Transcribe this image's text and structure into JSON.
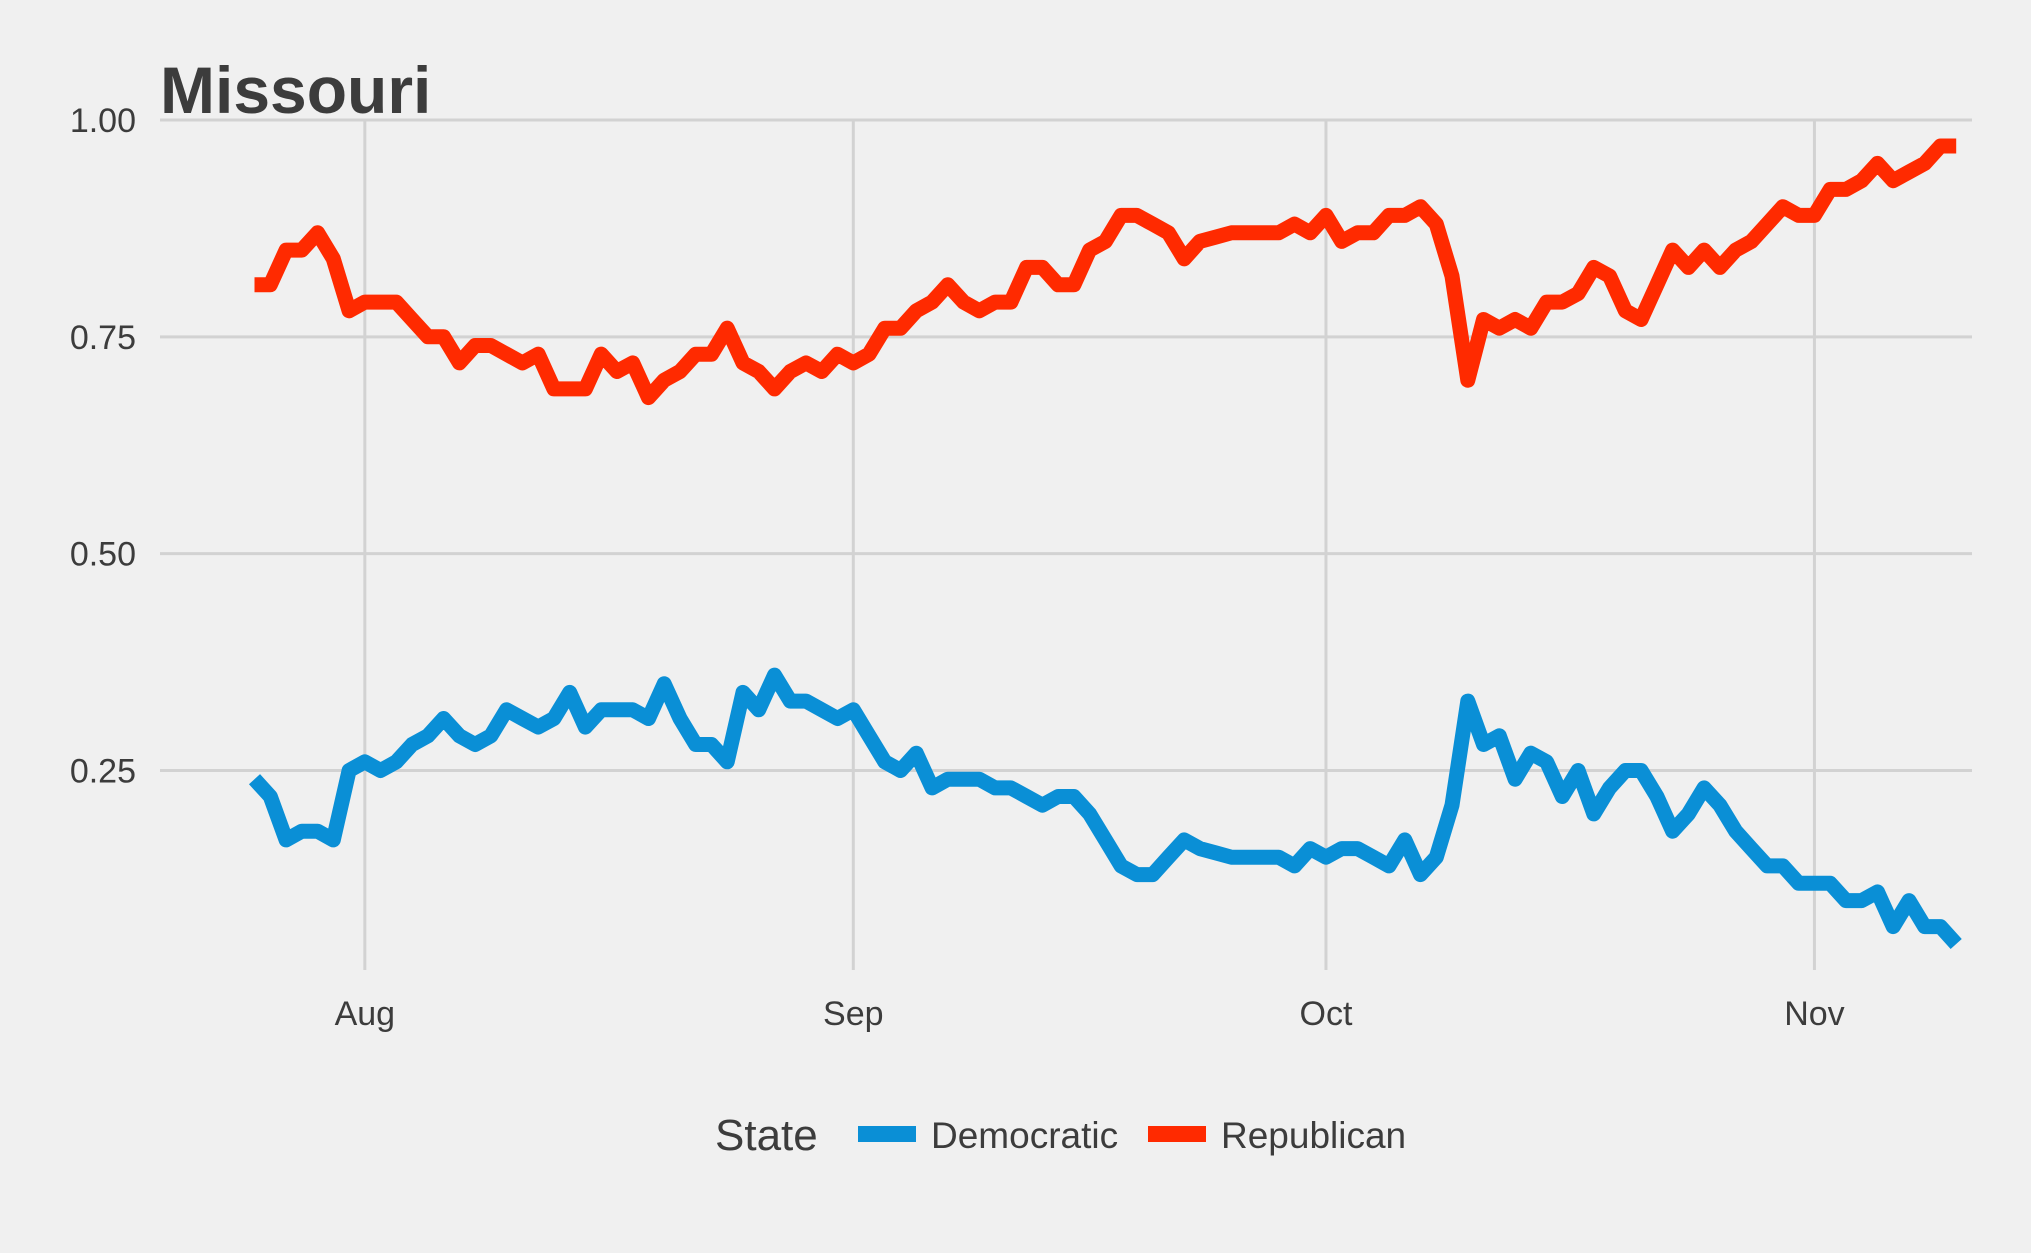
{
  "chart_data": {
    "type": "line",
    "title": "Missouri",
    "xlabel": "",
    "ylabel": "",
    "x_axis": {
      "type": "date",
      "range": [
        "07-19",
        "11-11"
      ],
      "ticks": [
        {
          "date": "08-01",
          "label": "Aug"
        },
        {
          "date": "09-01",
          "label": "Sep"
        },
        {
          "date": "10-01",
          "label": "Oct"
        },
        {
          "date": "11-01",
          "label": "Nov"
        }
      ]
    },
    "y_axis": {
      "range": [
        0.02,
        1.0
      ],
      "ticks": [
        0.25,
        0.5,
        0.75,
        1.0
      ],
      "tick_labels": [
        "0.25",
        "0.50",
        "0.75",
        "1.00"
      ]
    },
    "grid": true,
    "legend": {
      "title": "State",
      "position": "bottom"
    },
    "series": [
      {
        "name": "Democratic",
        "color": "#0a8fd6",
        "points": [
          [
            "07-25",
            0.24
          ],
          [
            "07-26",
            0.22
          ],
          [
            "07-27",
            0.17
          ],
          [
            "07-28",
            0.18
          ],
          [
            "07-29",
            0.18
          ],
          [
            "07-30",
            0.17
          ],
          [
            "07-31",
            0.25
          ],
          [
            "08-01",
            0.26
          ],
          [
            "08-02",
            0.25
          ],
          [
            "08-03",
            0.26
          ],
          [
            "08-04",
            0.28
          ],
          [
            "08-05",
            0.29
          ],
          [
            "08-06",
            0.31
          ],
          [
            "08-07",
            0.29
          ],
          [
            "08-08",
            0.28
          ],
          [
            "08-09",
            0.29
          ],
          [
            "08-10",
            0.32
          ],
          [
            "08-11",
            0.31
          ],
          [
            "08-12",
            0.3
          ],
          [
            "08-13",
            0.31
          ],
          [
            "08-14",
            0.34
          ],
          [
            "08-15",
            0.3
          ],
          [
            "08-16",
            0.32
          ],
          [
            "08-17",
            0.32
          ],
          [
            "08-18",
            0.32
          ],
          [
            "08-19",
            0.31
          ],
          [
            "08-20",
            0.35
          ],
          [
            "08-21",
            0.31
          ],
          [
            "08-22",
            0.28
          ],
          [
            "08-23",
            0.28
          ],
          [
            "08-24",
            0.26
          ],
          [
            "08-25",
            0.34
          ],
          [
            "08-26",
            0.32
          ],
          [
            "08-27",
            0.36
          ],
          [
            "08-28",
            0.33
          ],
          [
            "08-29",
            0.33
          ],
          [
            "08-30",
            0.32
          ],
          [
            "08-31",
            0.31
          ],
          [
            "09-01",
            0.32
          ],
          [
            "09-02",
            0.29
          ],
          [
            "09-03",
            0.26
          ],
          [
            "09-04",
            0.25
          ],
          [
            "09-05",
            0.27
          ],
          [
            "09-06",
            0.23
          ],
          [
            "09-07",
            0.24
          ],
          [
            "09-08",
            0.24
          ],
          [
            "09-09",
            0.24
          ],
          [
            "09-10",
            0.23
          ],
          [
            "09-11",
            0.23
          ],
          [
            "09-12",
            0.22
          ],
          [
            "09-13",
            0.21
          ],
          [
            "09-14",
            0.22
          ],
          [
            "09-15",
            0.22
          ],
          [
            "09-16",
            0.2
          ],
          [
            "09-17",
            0.17
          ],
          [
            "09-18",
            0.14
          ],
          [
            "09-19",
            0.13
          ],
          [
            "09-20",
            0.13
          ],
          [
            "09-21",
            0.15
          ],
          [
            "09-22",
            0.17
          ],
          [
            "09-23",
            0.16
          ],
          [
            "09-24",
            0.155
          ],
          [
            "09-25",
            0.15
          ],
          [
            "09-26",
            0.15
          ],
          [
            "09-27",
            0.15
          ],
          [
            "09-28",
            0.15
          ],
          [
            "09-29",
            0.14
          ],
          [
            "09-30",
            0.16
          ],
          [
            "10-01",
            0.15
          ],
          [
            "10-02",
            0.16
          ],
          [
            "10-03",
            0.16
          ],
          [
            "10-04",
            0.15
          ],
          [
            "10-05",
            0.14
          ],
          [
            "10-06",
            0.17
          ],
          [
            "10-07",
            0.13
          ],
          [
            "10-08",
            0.15
          ],
          [
            "10-09",
            0.21
          ],
          [
            "10-10",
            0.33
          ],
          [
            "10-11",
            0.28
          ],
          [
            "10-12",
            0.29
          ],
          [
            "10-13",
            0.24
          ],
          [
            "10-14",
            0.27
          ],
          [
            "10-15",
            0.26
          ],
          [
            "10-16",
            0.22
          ],
          [
            "10-17",
            0.25
          ],
          [
            "10-18",
            0.2
          ],
          [
            "10-19",
            0.23
          ],
          [
            "10-20",
            0.25
          ],
          [
            "10-21",
            0.25
          ],
          [
            "10-22",
            0.22
          ],
          [
            "10-23",
            0.18
          ],
          [
            "10-24",
            0.2
          ],
          [
            "10-25",
            0.23
          ],
          [
            "10-26",
            0.21
          ],
          [
            "10-27",
            0.18
          ],
          [
            "10-28",
            0.16
          ],
          [
            "10-29",
            0.14
          ],
          [
            "10-30",
            0.14
          ],
          [
            "10-31",
            0.12
          ],
          [
            "11-01",
            0.12
          ],
          [
            "11-02",
            0.12
          ],
          [
            "11-03",
            0.1
          ],
          [
            "11-04",
            0.1
          ],
          [
            "11-05",
            0.11
          ],
          [
            "11-06",
            0.07
          ],
          [
            "11-07",
            0.1
          ],
          [
            "11-08",
            0.07
          ],
          [
            "11-09",
            0.07
          ],
          [
            "11-10",
            0.05
          ]
        ]
      },
      {
        "name": "Republican",
        "color": "#ff2a00",
        "points": [
          [
            "07-25",
            0.81
          ],
          [
            "07-26",
            0.81
          ],
          [
            "07-27",
            0.85
          ],
          [
            "07-28",
            0.85
          ],
          [
            "07-29",
            0.87
          ],
          [
            "07-30",
            0.84
          ],
          [
            "07-31",
            0.78
          ],
          [
            "08-01",
            0.79
          ],
          [
            "08-02",
            0.79
          ],
          [
            "08-03",
            0.79
          ],
          [
            "08-04",
            0.77
          ],
          [
            "08-05",
            0.75
          ],
          [
            "08-06",
            0.75
          ],
          [
            "08-07",
            0.72
          ],
          [
            "08-08",
            0.74
          ],
          [
            "08-09",
            0.74
          ],
          [
            "08-10",
            0.73
          ],
          [
            "08-11",
            0.72
          ],
          [
            "08-12",
            0.73
          ],
          [
            "08-13",
            0.69
          ],
          [
            "08-14",
            0.69
          ],
          [
            "08-15",
            0.69
          ],
          [
            "08-16",
            0.73
          ],
          [
            "08-17",
            0.71
          ],
          [
            "08-18",
            0.72
          ],
          [
            "08-19",
            0.68
          ],
          [
            "08-20",
            0.7
          ],
          [
            "08-21",
            0.71
          ],
          [
            "08-22",
            0.73
          ],
          [
            "08-23",
            0.73
          ],
          [
            "08-24",
            0.76
          ],
          [
            "08-25",
            0.72
          ],
          [
            "08-26",
            0.71
          ],
          [
            "08-27",
            0.69
          ],
          [
            "08-28",
            0.71
          ],
          [
            "08-29",
            0.72
          ],
          [
            "08-30",
            0.71
          ],
          [
            "08-31",
            0.73
          ],
          [
            "09-01",
            0.72
          ],
          [
            "09-02",
            0.73
          ],
          [
            "09-03",
            0.76
          ],
          [
            "09-04",
            0.76
          ],
          [
            "09-05",
            0.78
          ],
          [
            "09-06",
            0.79
          ],
          [
            "09-07",
            0.81
          ],
          [
            "09-08",
            0.79
          ],
          [
            "09-09",
            0.78
          ],
          [
            "09-10",
            0.79
          ],
          [
            "09-11",
            0.79
          ],
          [
            "09-12",
            0.83
          ],
          [
            "09-13",
            0.83
          ],
          [
            "09-14",
            0.81
          ],
          [
            "09-15",
            0.81
          ],
          [
            "09-16",
            0.85
          ],
          [
            "09-17",
            0.86
          ],
          [
            "09-18",
            0.89
          ],
          [
            "09-19",
            0.89
          ],
          [
            "09-20",
            0.88
          ],
          [
            "09-21",
            0.87
          ],
          [
            "09-22",
            0.84
          ],
          [
            "09-23",
            0.86
          ],
          [
            "09-24",
            0.865
          ],
          [
            "09-25",
            0.87
          ],
          [
            "09-26",
            0.87
          ],
          [
            "09-27",
            0.87
          ],
          [
            "09-28",
            0.87
          ],
          [
            "09-29",
            0.88
          ],
          [
            "09-30",
            0.87
          ],
          [
            "10-01",
            0.89
          ],
          [
            "10-02",
            0.86
          ],
          [
            "10-03",
            0.87
          ],
          [
            "10-04",
            0.87
          ],
          [
            "10-05",
            0.89
          ],
          [
            "10-06",
            0.89
          ],
          [
            "10-07",
            0.9
          ],
          [
            "10-08",
            0.88
          ],
          [
            "10-09",
            0.82
          ],
          [
            "10-10",
            0.7
          ],
          [
            "10-11",
            0.77
          ],
          [
            "10-12",
            0.76
          ],
          [
            "10-13",
            0.77
          ],
          [
            "10-14",
            0.76
          ],
          [
            "10-15",
            0.79
          ],
          [
            "10-16",
            0.79
          ],
          [
            "10-17",
            0.8
          ],
          [
            "10-18",
            0.83
          ],
          [
            "10-19",
            0.82
          ],
          [
            "10-20",
            0.78
          ],
          [
            "10-21",
            0.77
          ],
          [
            "10-22",
            0.81
          ],
          [
            "10-23",
            0.85
          ],
          [
            "10-24",
            0.83
          ],
          [
            "10-25",
            0.85
          ],
          [
            "10-26",
            0.83
          ],
          [
            "10-27",
            0.85
          ],
          [
            "10-28",
            0.86
          ],
          [
            "10-29",
            0.88
          ],
          [
            "10-30",
            0.9
          ],
          [
            "10-31",
            0.89
          ],
          [
            "11-01",
            0.89
          ],
          [
            "11-02",
            0.92
          ],
          [
            "11-03",
            0.92
          ],
          [
            "11-04",
            0.93
          ],
          [
            "11-05",
            0.95
          ],
          [
            "11-06",
            0.93
          ],
          [
            "11-07",
            0.94
          ],
          [
            "11-08",
            0.95
          ],
          [
            "11-09",
            0.97
          ],
          [
            "11-10",
            0.97
          ]
        ]
      }
    ]
  }
}
